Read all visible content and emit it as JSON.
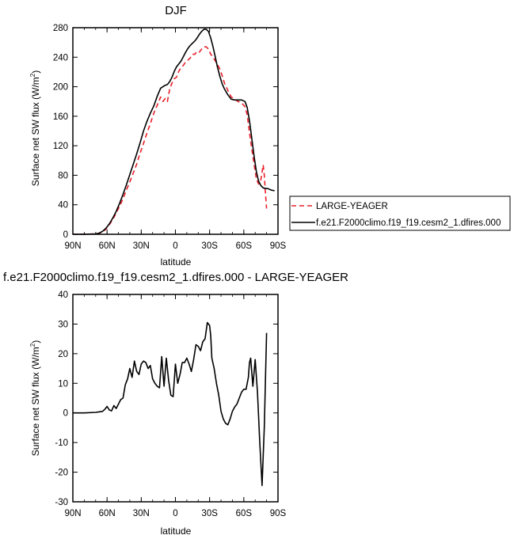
{
  "chart_data": [
    {
      "type": "line",
      "title": "DJF",
      "xlabel": "latitude",
      "ylabel_main": "Surface net SW flux (W/m",
      "ylabel_sup": "2",
      "ylabel_close": ")",
      "xlim": [
        90,
        -90
      ],
      "ylim": [
        0,
        280
      ],
      "xticks": [
        90,
        60,
        30,
        0,
        -30,
        -60,
        -90
      ],
      "xtick_labels": [
        "90N",
        "60N",
        "30N",
        "0",
        "30S",
        "60S",
        "90S"
      ],
      "yticks": [
        0,
        40,
        80,
        120,
        160,
        200,
        240,
        280
      ],
      "ytick_labels": [
        "0",
        "40",
        "80",
        "120",
        "160",
        "200",
        "240",
        "280"
      ],
      "legend_position": "right",
      "series": [
        {
          "name": "LARGE-YEAGER",
          "color": "#e8202a",
          "dash": "6,4",
          "x": [
            90,
            80,
            70,
            67,
            64,
            61,
            58,
            55,
            52,
            49,
            46,
            43,
            40,
            37,
            34,
            31,
            28,
            25,
            22,
            19,
            16,
            13,
            11,
            9,
            7,
            5,
            3,
            1,
            -1,
            -3,
            -5,
            -7,
            -9,
            -11,
            -13,
            -15,
            -17,
            -19,
            -21,
            -23,
            -25,
            -27,
            -29,
            -31,
            -33,
            -35,
            -37,
            -39,
            -41,
            -43,
            -46,
            -49,
            -52,
            -55,
            -58,
            -61,
            -63,
            -65,
            -67,
            -69,
            -71,
            -73,
            -75,
            -77,
            -78,
            -79,
            -80
          ],
          "values": [
            0,
            0,
            0.5,
            1.5,
            3,
            7,
            13,
            20,
            29,
            38,
            48,
            60,
            71,
            83,
            95,
            110,
            123,
            137,
            150,
            164,
            175,
            186,
            180,
            184,
            180,
            197,
            205,
            211,
            213,
            221,
            226,
            229,
            234,
            236,
            239,
            244,
            244,
            248,
            247,
            251,
            254,
            254,
            251,
            244,
            240,
            235,
            230,
            224,
            215,
            205,
            195,
            186,
            183,
            180,
            178,
            173,
            162,
            138,
            116,
            95,
            75,
            68,
            74,
            94,
            80,
            55,
            35
          ]
        },
        {
          "name": "f.e21.F2000climo.f19_f19.cesm2_1.dfires.000",
          "color": "#000000",
          "dash": "",
          "x": [
            90,
            80,
            70,
            67,
            64,
            61,
            58,
            55,
            52,
            49,
            46,
            43,
            40,
            37,
            34,
            31,
            28,
            25,
            22,
            19,
            16,
            13,
            11,
            9,
            7,
            5,
            3,
            1,
            -1,
            -3,
            -5,
            -7,
            -9,
            -11,
            -13,
            -15,
            -17,
            -19,
            -21,
            -23,
            -25,
            -27,
            -29,
            -31,
            -33,
            -35,
            -37,
            -39,
            -41,
            -43,
            -46,
            -49,
            -52,
            -55,
            -58,
            -61,
            -63,
            -65,
            -67,
            -69,
            -71,
            -73,
            -75,
            -77,
            -79,
            -81,
            -84,
            -87
          ],
          "values": [
            0,
            0,
            0.5,
            1.5,
            4,
            8,
            14,
            22,
            31,
            42,
            54,
            67,
            81,
            95,
            109,
            124,
            140,
            153,
            164,
            174,
            187,
            198,
            200,
            202,
            203,
            207,
            213,
            221,
            227,
            231,
            235,
            241,
            247,
            252,
            256,
            259,
            262,
            266,
            271,
            275,
            278,
            278,
            275,
            266,
            254,
            240,
            226,
            214,
            204,
            197,
            189,
            183,
            182,
            182,
            182,
            180,
            172,
            154,
            130,
            106,
            85,
            72,
            66,
            63,
            62,
            62,
            60,
            59
          ]
        }
      ]
    },
    {
      "type": "line",
      "title": "f.e21.F2000climo.f19_f19.cesm2_1.dfires.000 - LARGE-YEAGER",
      "xlabel": "latitude",
      "ylabel_main": "Surface net SW flux (W/m",
      "ylabel_sup": "2",
      "ylabel_close": ")",
      "xlim": [
        90,
        -90
      ],
      "ylim": [
        -30,
        40
      ],
      "xticks": [
        90,
        60,
        30,
        0,
        -30,
        -60,
        -90
      ],
      "xtick_labels": [
        "90N",
        "60N",
        "30N",
        "0",
        "30S",
        "60S",
        "90S"
      ],
      "yticks": [
        -30,
        -20,
        -10,
        0,
        10,
        20,
        30,
        40
      ],
      "ytick_labels": [
        "-30",
        "-20",
        "-10",
        "0",
        "10",
        "20",
        "30",
        "40"
      ],
      "series": [
        {
          "color": "#000000",
          "dash": "",
          "x": [
            90,
            80,
            70,
            66,
            64,
            62,
            60,
            58,
            56,
            54,
            52,
            50,
            48,
            46,
            44,
            42,
            40,
            38,
            36,
            34,
            32,
            30,
            28,
            26,
            24,
            22,
            20,
            18,
            16,
            14,
            12,
            10,
            8,
            6,
            4,
            2,
            0,
            -2,
            -4,
            -6,
            -8,
            -10,
            -12,
            -14,
            -16,
            -18,
            -20,
            -22,
            -24,
            -26,
            -28,
            -30,
            -31,
            -32,
            -34,
            -36,
            -38,
            -40,
            -42,
            -44,
            -46,
            -48,
            -50,
            -52,
            -54,
            -56,
            -58,
            -60,
            -62,
            -64,
            -65,
            -66,
            -68,
            -70,
            -72,
            -74,
            -76,
            -78,
            -80
          ],
          "values": [
            0,
            0,
            0.2,
            0.4,
            0.5,
            1.2,
            2.2,
            1.0,
            0.7,
            2.5,
            1.5,
            3.0,
            4.5,
            5.0,
            9.5,
            11.5,
            15.0,
            12.0,
            17.5,
            14.0,
            13.0,
            16.5,
            17.5,
            17.0,
            15.0,
            16.0,
            11.5,
            10.0,
            9.0,
            8.5,
            19.0,
            9.0,
            18.5,
            11.0,
            6.0,
            5.5,
            16.5,
            10.0,
            13.0,
            17.0,
            17.0,
            18.5,
            16.5,
            14.0,
            18.0,
            23.0,
            22.5,
            21.0,
            24.0,
            25.0,
            30.5,
            29.5,
            26.0,
            18.5,
            15.0,
            10.0,
            6.0,
            0.5,
            -2.0,
            -3.5,
            -4.0,
            -2.0,
            0.5,
            2.0,
            3.0,
            5.0,
            7.0,
            8.0,
            8.0,
            12.0,
            17.0,
            18.5,
            9.0,
            18.0,
            7.0,
            -10.0,
            -24.5,
            -5.0,
            27.0
          ]
        }
      ]
    }
  ]
}
